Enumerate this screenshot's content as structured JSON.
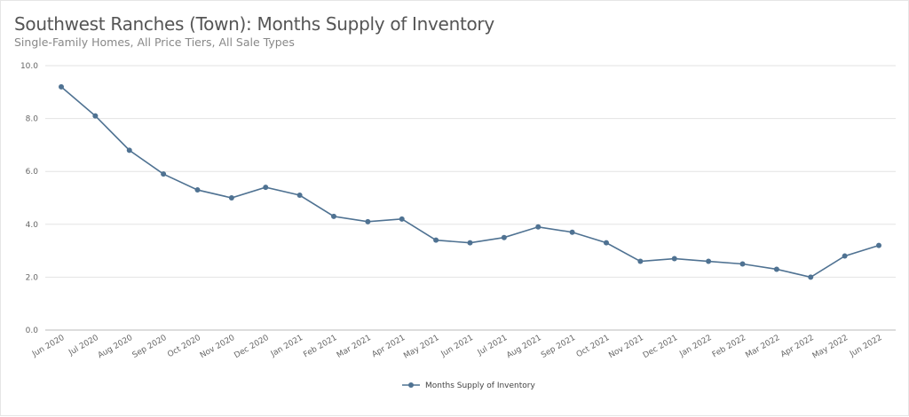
{
  "title": "Southwest Ranches (Town): Months Supply of Inventory",
  "subtitle": "Single-Family Homes, All Price Tiers, All Sale Types",
  "chart_data": {
    "type": "line",
    "title": "Southwest Ranches (Town): Months Supply of Inventory",
    "subtitle": "Single-Family Homes, All Price Tiers, All Sale Types",
    "xlabel": "",
    "ylabel": "",
    "ylim": [
      0,
      10
    ],
    "yticks": [
      "0.0",
      "2.0",
      "4.0",
      "6.0",
      "8.0",
      "10.0"
    ],
    "grid": true,
    "legend_position": "bottom",
    "categories": [
      "Jun 2020",
      "Jul 2020",
      "Aug 2020",
      "Sep 2020",
      "Oct 2020",
      "Nov 2020",
      "Dec 2020",
      "Jan 2021",
      "Feb 2021",
      "Mar 2021",
      "Apr 2021",
      "May 2021",
      "Jun 2021",
      "Jul 2021",
      "Aug 2021",
      "Sep 2021",
      "Oct 2021",
      "Nov 2021",
      "Dec 2021",
      "Jan 2022",
      "Feb 2022",
      "Mar 2022",
      "Apr 2022",
      "May 2022",
      "Jun 2022"
    ],
    "series": [
      {
        "name": "Months Supply of Inventory",
        "color": "#4f7292",
        "values": [
          9.2,
          8.1,
          6.8,
          5.9,
          5.3,
          5.0,
          5.4,
          5.1,
          4.3,
          4.1,
          4.2,
          3.4,
          3.3,
          3.5,
          3.9,
          3.7,
          3.3,
          2.6,
          2.7,
          2.6,
          2.5,
          2.3,
          2.0,
          2.8,
          3.2
        ]
      }
    ]
  }
}
